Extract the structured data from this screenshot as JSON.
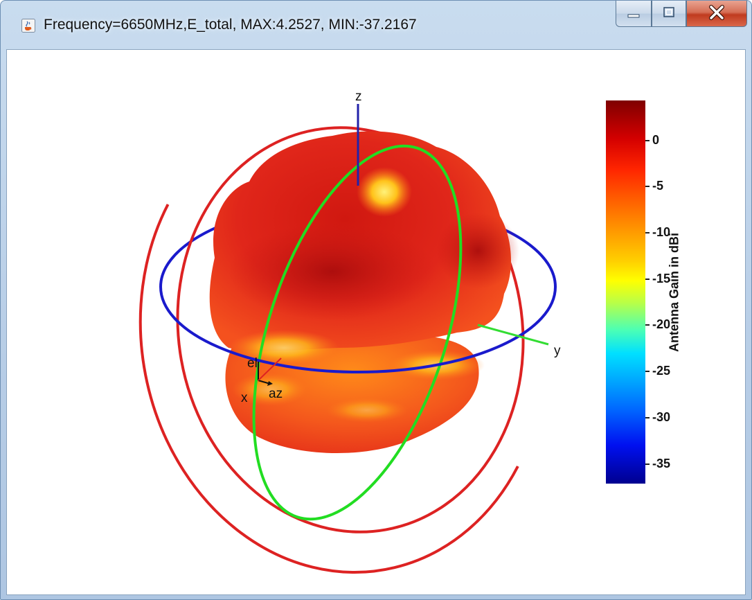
{
  "window": {
    "title": "Frequency=6650MHz,E_total, MAX:4.2527, MIN:-37.2167",
    "app_icon": "java-coffee-icon",
    "buttons": {
      "minimize": "minimize-icon",
      "maximize": "maximize-icon",
      "close": "close-icon"
    }
  },
  "plot": {
    "axis_labels": {
      "z": "z",
      "y": "y",
      "x": "x",
      "az": "az",
      "el": "el"
    },
    "colors": {
      "azimuth_ring": "#1a1acc",
      "elevation_ring_green": "#22dd22",
      "elevation_ring_red": "#dd2222",
      "pattern_main": "#e8231a",
      "pattern_dark": "#b8120f",
      "pattern_hot": "#ffd21a"
    }
  },
  "colorbar": {
    "title": "Antenna Gain in dBi",
    "range": [
      -37.2167,
      4.2527
    ],
    "ticks": [
      "0",
      "-5",
      "-10",
      "-15",
      "-20",
      "-25",
      "-30",
      "-35"
    ]
  }
}
